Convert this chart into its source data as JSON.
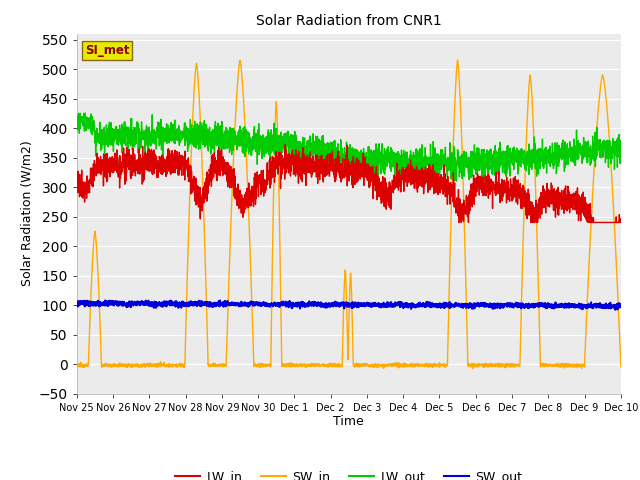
{
  "title": "Solar Radiation from CNR1",
  "xlabel": "Time",
  "ylabel": "Solar Radiation (W/m2)",
  "ylim": [
    -50,
    560
  ],
  "yticks": [
    -50,
    0,
    50,
    100,
    150,
    200,
    250,
    300,
    350,
    400,
    450,
    500,
    550
  ],
  "fig_bg_color": "#ffffff",
  "plot_bg_color": "#ebebeb",
  "legend_label": "SI_met",
  "legend_box_facecolor": "#e8e800",
  "legend_box_edgecolor": "#8B6914",
  "legend_text_color": "#8B0000",
  "series_colors": {
    "LW_in": "#dd0000",
    "SW_in": "#ffaa00",
    "LW_out": "#00cc00",
    "SW_out": "#0000dd"
  },
  "x_tick_labels": [
    "Nov 25",
    "Nov 26",
    "Nov 27",
    "Nov 28",
    "Nov 29",
    "Nov 30",
    "Dec 1",
    "Dec 2",
    "Dec 3",
    "Dec 4",
    "Dec 5",
    "Dec 6",
    "Dec 7",
    "Dec 8",
    "Dec 9",
    "Dec 10"
  ],
  "grid_color": "#ffffff",
  "line_width": 1.0,
  "figsize": [
    6.4,
    4.8
  ],
  "dpi": 100
}
